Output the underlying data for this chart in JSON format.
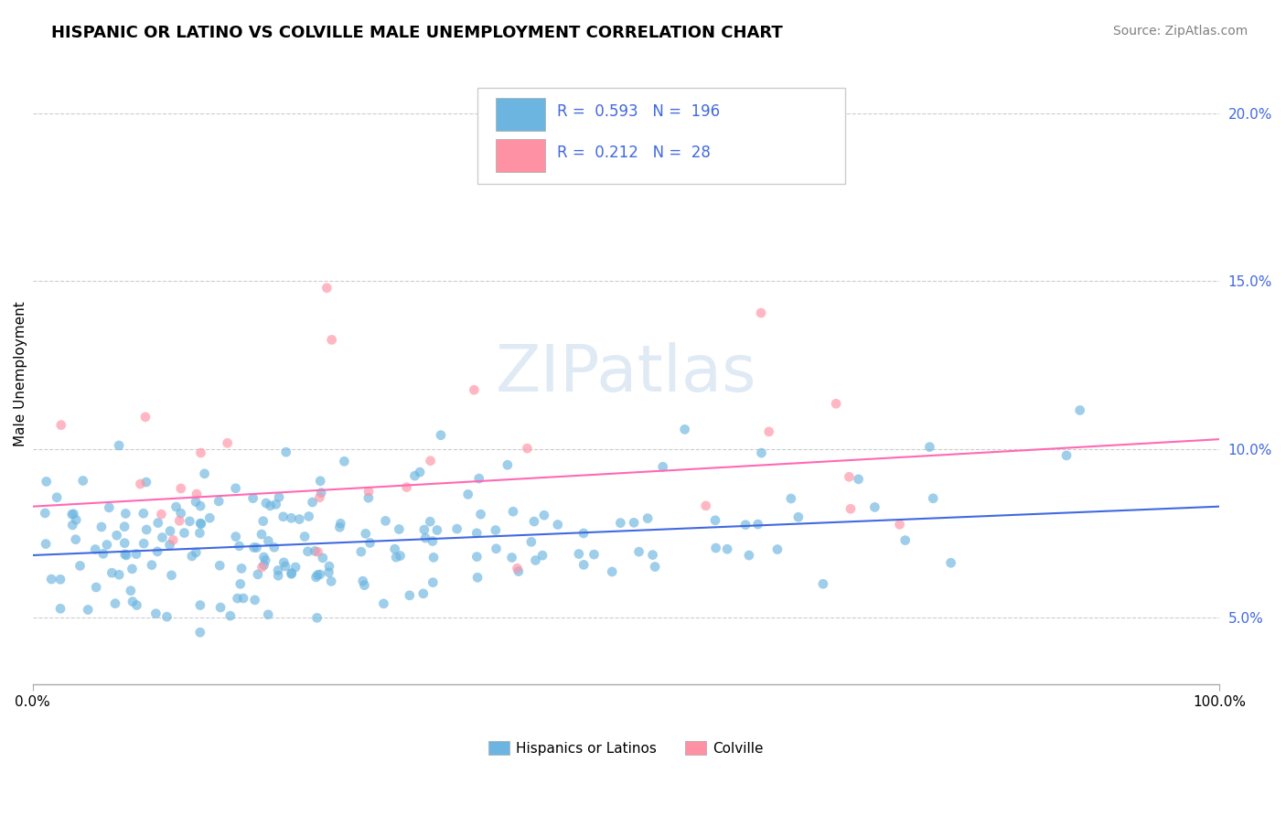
{
  "title": "HISPANIC OR LATINO VS COLVILLE MALE UNEMPLOYMENT CORRELATION CHART",
  "source": "Source: ZipAtlas.com",
  "ylabel": "Male Unemployment",
  "xlim": [
    0.0,
    1.0
  ],
  "ylim": [
    0.03,
    0.215
  ],
  "yticks": [
    0.05,
    0.1,
    0.15,
    0.2
  ],
  "ytick_labels": [
    "5.0%",
    "10.0%",
    "15.0%",
    "20.0%"
  ],
  "xtick_labels": [
    "0.0%",
    "100.0%"
  ],
  "legend1_label": "Hispanics or Latinos",
  "legend2_label": "Colville",
  "R1": 0.593,
  "N1": 196,
  "R2": 0.212,
  "N2": 28,
  "blue_scatter_color": "#6BB5E0",
  "pink_scatter_color": "#FF91A4",
  "trendline1_color": "#4169E1",
  "trendline2_color": "#FF69B4",
  "watermark": "ZIPatlas",
  "title_fontsize": 13,
  "label_fontsize": 11,
  "tick_fontsize": 11,
  "source_fontsize": 10,
  "blue_trend_start_y": 0.0685,
  "blue_trend_end_y": 0.083,
  "pink_trend_start_y": 0.083,
  "pink_trend_end_y": 0.103,
  "seed": 42
}
